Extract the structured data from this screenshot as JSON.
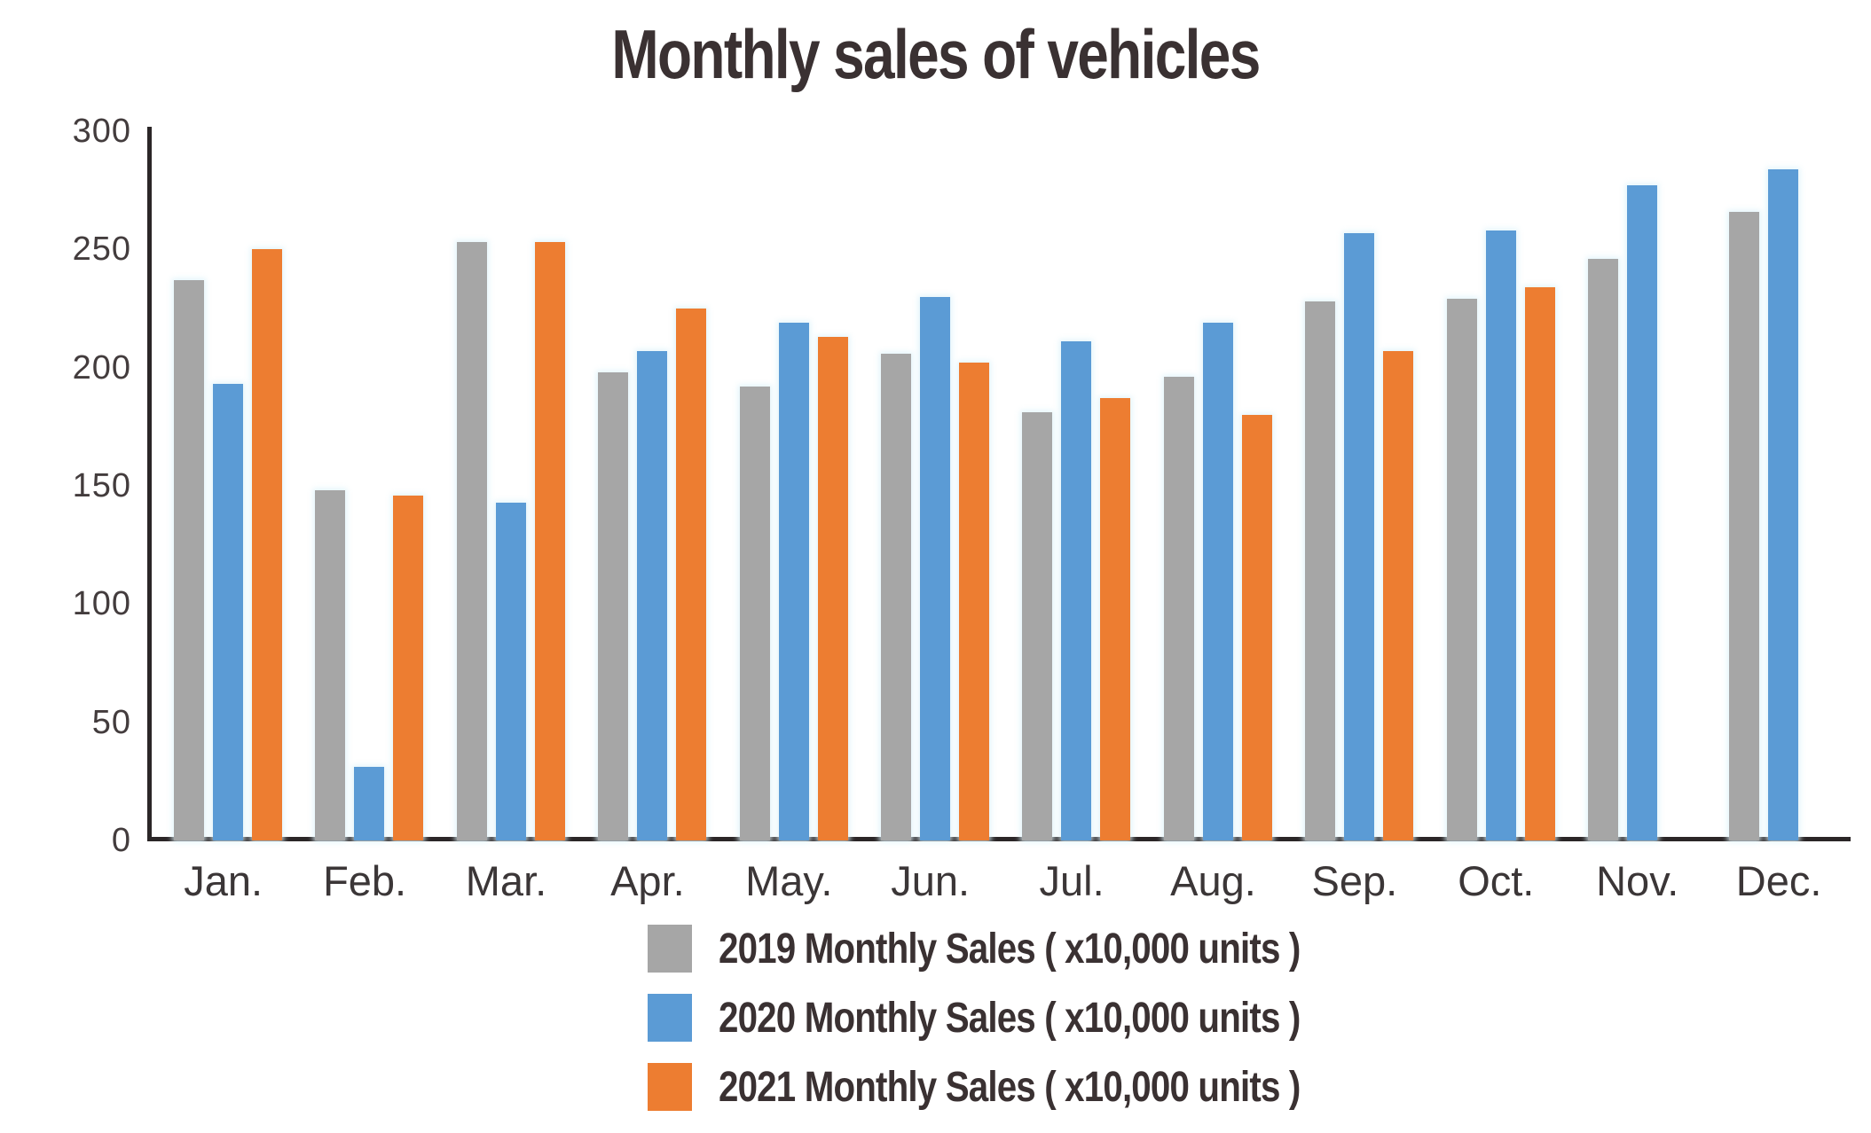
{
  "chart_data": {
    "type": "bar",
    "title": "Monthly sales of vehicles",
    "categories": [
      "Jan.",
      "Feb.",
      "Mar.",
      "Apr.",
      "May.",
      "Jun.",
      "Jul.",
      "Aug.",
      "Sep.",
      "Oct.",
      "Nov.",
      "Dec."
    ],
    "series": [
      {
        "name": "2019 Monthly Sales ( x10,000 units )",
        "color": "#a6a6a6",
        "values": [
          237,
          148,
          253,
          198,
          192,
          206,
          181,
          196,
          228,
          229,
          246,
          266
        ]
      },
      {
        "name": "2020 Monthly Sales ( x10,000 units )",
        "color": "#5b9bd5",
        "values": [
          193,
          31,
          143,
          207,
          219,
          230,
          211,
          219,
          257,
          258,
          277,
          284
        ]
      },
      {
        "name": "2021 Monthly Sales ( x10,000 units )",
        "color": "#ed7d31",
        "values": [
          250,
          146,
          253,
          225,
          213,
          202,
          187,
          180,
          207,
          234,
          null,
          null
        ]
      }
    ],
    "ylabel": "",
    "xlabel": "",
    "ylim": [
      0,
      300
    ],
    "yticks": [
      0,
      50,
      100,
      150,
      200,
      250,
      300
    ],
    "grid": false,
    "legend_position": "bottom",
    "axis_color": "#2b2627",
    "text_color": "#3a3132"
  }
}
